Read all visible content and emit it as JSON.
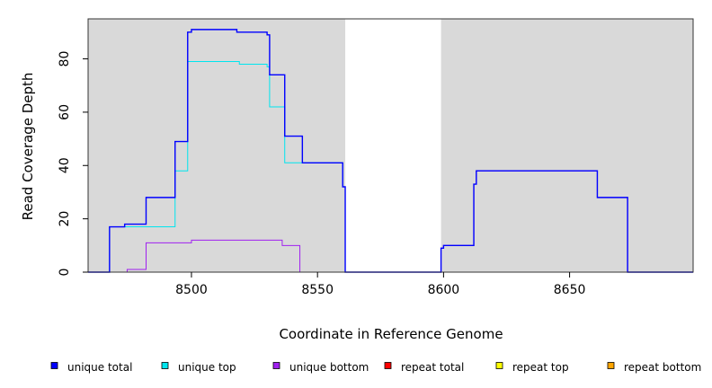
{
  "chart_data": {
    "type": "line",
    "title": "",
    "xlabel": "Coordinate in Reference Genome",
    "ylabel": "Read Coverage Depth",
    "xlim": [
      8459,
      8699
    ],
    "ylim": [
      0,
      95
    ],
    "x_ticks": [
      8500,
      8550,
      8600,
      8650
    ],
    "y_ticks": [
      0,
      20,
      40,
      60,
      80
    ],
    "grid": false,
    "background_color": "#d9d9d9",
    "shaded_ranges": [
      [
        8459,
        8561
      ],
      [
        8599,
        8699
      ]
    ],
    "legend_position": "bottom",
    "series": [
      {
        "name": "unique total",
        "color": "#0000ff",
        "points": [
          [
            8459,
            0
          ],
          [
            8467.5,
            0
          ],
          [
            8467.5,
            17
          ],
          [
            8473.5,
            17
          ],
          [
            8473.5,
            18
          ],
          [
            8482,
            18
          ],
          [
            8482,
            28
          ],
          [
            8493.5,
            28
          ],
          [
            8493.5,
            49
          ],
          [
            8498.5,
            49
          ],
          [
            8498.5,
            90
          ],
          [
            8500,
            90
          ],
          [
            8500,
            91
          ],
          [
            8518,
            91
          ],
          [
            8518,
            90
          ],
          [
            8530,
            90
          ],
          [
            8530,
            89
          ],
          [
            8531,
            89
          ],
          [
            8531,
            74
          ],
          [
            8537,
            74
          ],
          [
            8537,
            51
          ],
          [
            8544,
            51
          ],
          [
            8544,
            41
          ],
          [
            8560,
            41
          ],
          [
            8560,
            32
          ],
          [
            8561,
            32
          ],
          [
            8561,
            0
          ],
          [
            8599,
            0
          ],
          [
            8599,
            9
          ],
          [
            8600,
            9
          ],
          [
            8600,
            10
          ],
          [
            8612,
            10
          ],
          [
            8612,
            33
          ],
          [
            8613,
            33
          ],
          [
            8613,
            38
          ],
          [
            8661,
            38
          ],
          [
            8661,
            28
          ],
          [
            8673,
            28
          ],
          [
            8673,
            0
          ],
          [
            8699,
            0
          ]
        ]
      },
      {
        "name": "unique top",
        "color": "#00e5ee",
        "points": [
          [
            8459,
            0
          ],
          [
            8467.5,
            0
          ],
          [
            8467.5,
            17
          ],
          [
            8493.5,
            17
          ],
          [
            8493.5,
            38
          ],
          [
            8498.5,
            38
          ],
          [
            8498.5,
            79
          ],
          [
            8519,
            79
          ],
          [
            8519,
            78
          ],
          [
            8530,
            78
          ],
          [
            8530,
            77
          ],
          [
            8531,
            77
          ],
          [
            8531,
            62
          ],
          [
            8537,
            62
          ],
          [
            8537,
            41
          ],
          [
            8560,
            41
          ],
          [
            8560,
            32
          ],
          [
            8561,
            32
          ],
          [
            8561,
            0
          ],
          [
            8699,
            0
          ]
        ]
      },
      {
        "name": "unique bottom",
        "color": "#a020f0",
        "points": [
          [
            8459,
            0
          ],
          [
            8474.5,
            0
          ],
          [
            8474.5,
            1
          ],
          [
            8482,
            1
          ],
          [
            8482,
            11
          ],
          [
            8500,
            11
          ],
          [
            8500,
            12
          ],
          [
            8536,
            12
          ],
          [
            8536,
            10
          ],
          [
            8543,
            10
          ],
          [
            8543,
            0
          ],
          [
            8599,
            0
          ],
          [
            8599,
            9
          ],
          [
            8600,
            9
          ],
          [
            8600,
            10
          ],
          [
            8612,
            10
          ],
          [
            8612,
            33
          ],
          [
            8613,
            33
          ],
          [
            8613,
            38
          ],
          [
            8661,
            38
          ],
          [
            8661,
            28
          ],
          [
            8673,
            28
          ],
          [
            8673,
            0
          ],
          [
            8699,
            0
          ]
        ]
      },
      {
        "name": "repeat total",
        "color": "#ff0000",
        "points": [
          [
            8459,
            0
          ],
          [
            8699,
            0
          ]
        ]
      },
      {
        "name": "repeat top",
        "color": "#ffff00",
        "points": [
          [
            8459,
            0
          ],
          [
            8699,
            0
          ]
        ]
      },
      {
        "name": "repeat bottom",
        "color": "#ffa500",
        "points": [
          [
            8459,
            0
          ],
          [
            8699,
            0
          ]
        ]
      }
    ]
  }
}
